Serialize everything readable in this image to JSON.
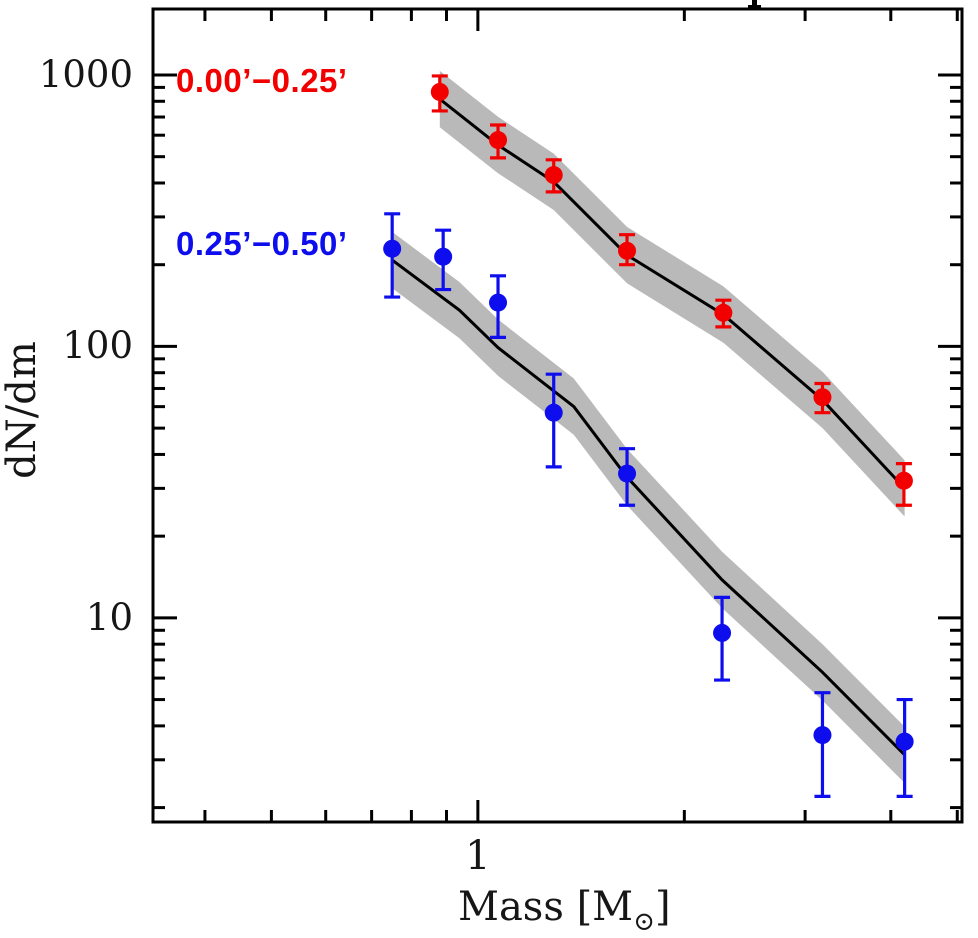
{
  "figure": {
    "background": "#ffffff",
    "axis_color": "#000000",
    "band_color": "#b9b9b9",
    "ylabel": "dN/dm",
    "xlabel_prefix": "Mass [M",
    "xlabel_sub": "⊙",
    "xlabel_suffix": "]"
  },
  "chart_data": {
    "type": "scatter",
    "title": "",
    "xlabel": "Mass [M⊙]",
    "ylabel": "dN/dm",
    "log_x": true,
    "log_y": true,
    "x_range": [
      0.336,
      5.08
    ],
    "y_range": [
      1.77,
      1750
    ],
    "grid": false,
    "legend_position": "upper-left-inside",
    "x_ticks": {
      "major": [
        1
      ],
      "minor": [
        0.4,
        0.5,
        0.6,
        0.7,
        0.8,
        0.9,
        2,
        3,
        4,
        5
      ]
    },
    "y_ticks": {
      "major": [
        10,
        100,
        1000
      ],
      "minor": [
        2,
        3,
        4,
        5,
        6,
        7,
        8,
        9,
        20,
        30,
        40,
        50,
        60,
        70,
        80,
        90,
        200,
        300,
        400,
        500,
        600,
        700,
        800,
        900
      ]
    },
    "x_tick_labels": [
      {
        "v": 1,
        "t": "1"
      }
    ],
    "y_tick_labels": [
      {
        "v": 10,
        "t": "10"
      },
      {
        "v": 100,
        "t": "100"
      },
      {
        "v": 1000,
        "t": "1000"
      }
    ],
    "series": [
      {
        "key": "red",
        "name": "0.00’−0.25’",
        "color": "#f20000",
        "marker": "circle",
        "band_factor": 1.27,
        "points": [
          {
            "m": 0.88,
            "v": 866,
            "lo": 737,
            "hi": 992
          },
          {
            "m": 1.07,
            "v": 576,
            "lo": 495,
            "hi": 654
          },
          {
            "m": 1.29,
            "v": 428,
            "lo": 371,
            "hi": 487
          },
          {
            "m": 1.65,
            "v": 225,
            "lo": 200,
            "hi": 258
          },
          {
            "m": 2.28,
            "v": 133,
            "lo": 118,
            "hi": 148
          },
          {
            "m": 3.18,
            "v": 65,
            "lo": 57,
            "hi": 73
          },
          {
            "m": 4.18,
            "v": 32,
            "lo": 26,
            "hi": 37
          }
        ],
        "fit_line": [
          [
            0.88,
            815
          ],
          [
            1.07,
            552
          ],
          [
            1.29,
            404
          ],
          [
            1.65,
            217
          ],
          [
            2.28,
            131
          ],
          [
            3.18,
            63.5
          ],
          [
            4.19,
            30
          ]
        ]
      },
      {
        "key": "blue",
        "name": "0.25’−0.50’",
        "color": "#0d0dee",
        "marker": "circle",
        "band_factor": 1.27,
        "points": [
          {
            "m": 0.75,
            "v": 229,
            "lo": 152,
            "hi": 308
          },
          {
            "m": 0.89,
            "v": 214,
            "lo": 162,
            "hi": 268
          },
          {
            "m": 1.07,
            "v": 145,
            "lo": 108,
            "hi": 182
          },
          {
            "m": 1.29,
            "v": 57,
            "lo": 36,
            "hi": 79
          },
          {
            "m": 1.65,
            "v": 34,
            "lo": 26,
            "hi": 42
          },
          {
            "m": 2.27,
            "v": 8.8,
            "lo": 5.9,
            "hi": 11.9
          },
          {
            "m": 3.18,
            "v": 3.7,
            "lo": 2.2,
            "hi": 5.3
          },
          {
            "m": 4.19,
            "v": 3.5,
            "lo": 2.2,
            "hi": 5.0
          }
        ],
        "fit_line": [
          [
            0.75,
            208
          ],
          [
            0.94,
            136
          ],
          [
            1.07,
            99
          ],
          [
            1.38,
            60
          ],
          [
            1.65,
            33
          ],
          [
            2.27,
            13.8
          ],
          [
            3.18,
            6.3
          ],
          [
            4.19,
            3.13
          ]
        ]
      }
    ]
  }
}
